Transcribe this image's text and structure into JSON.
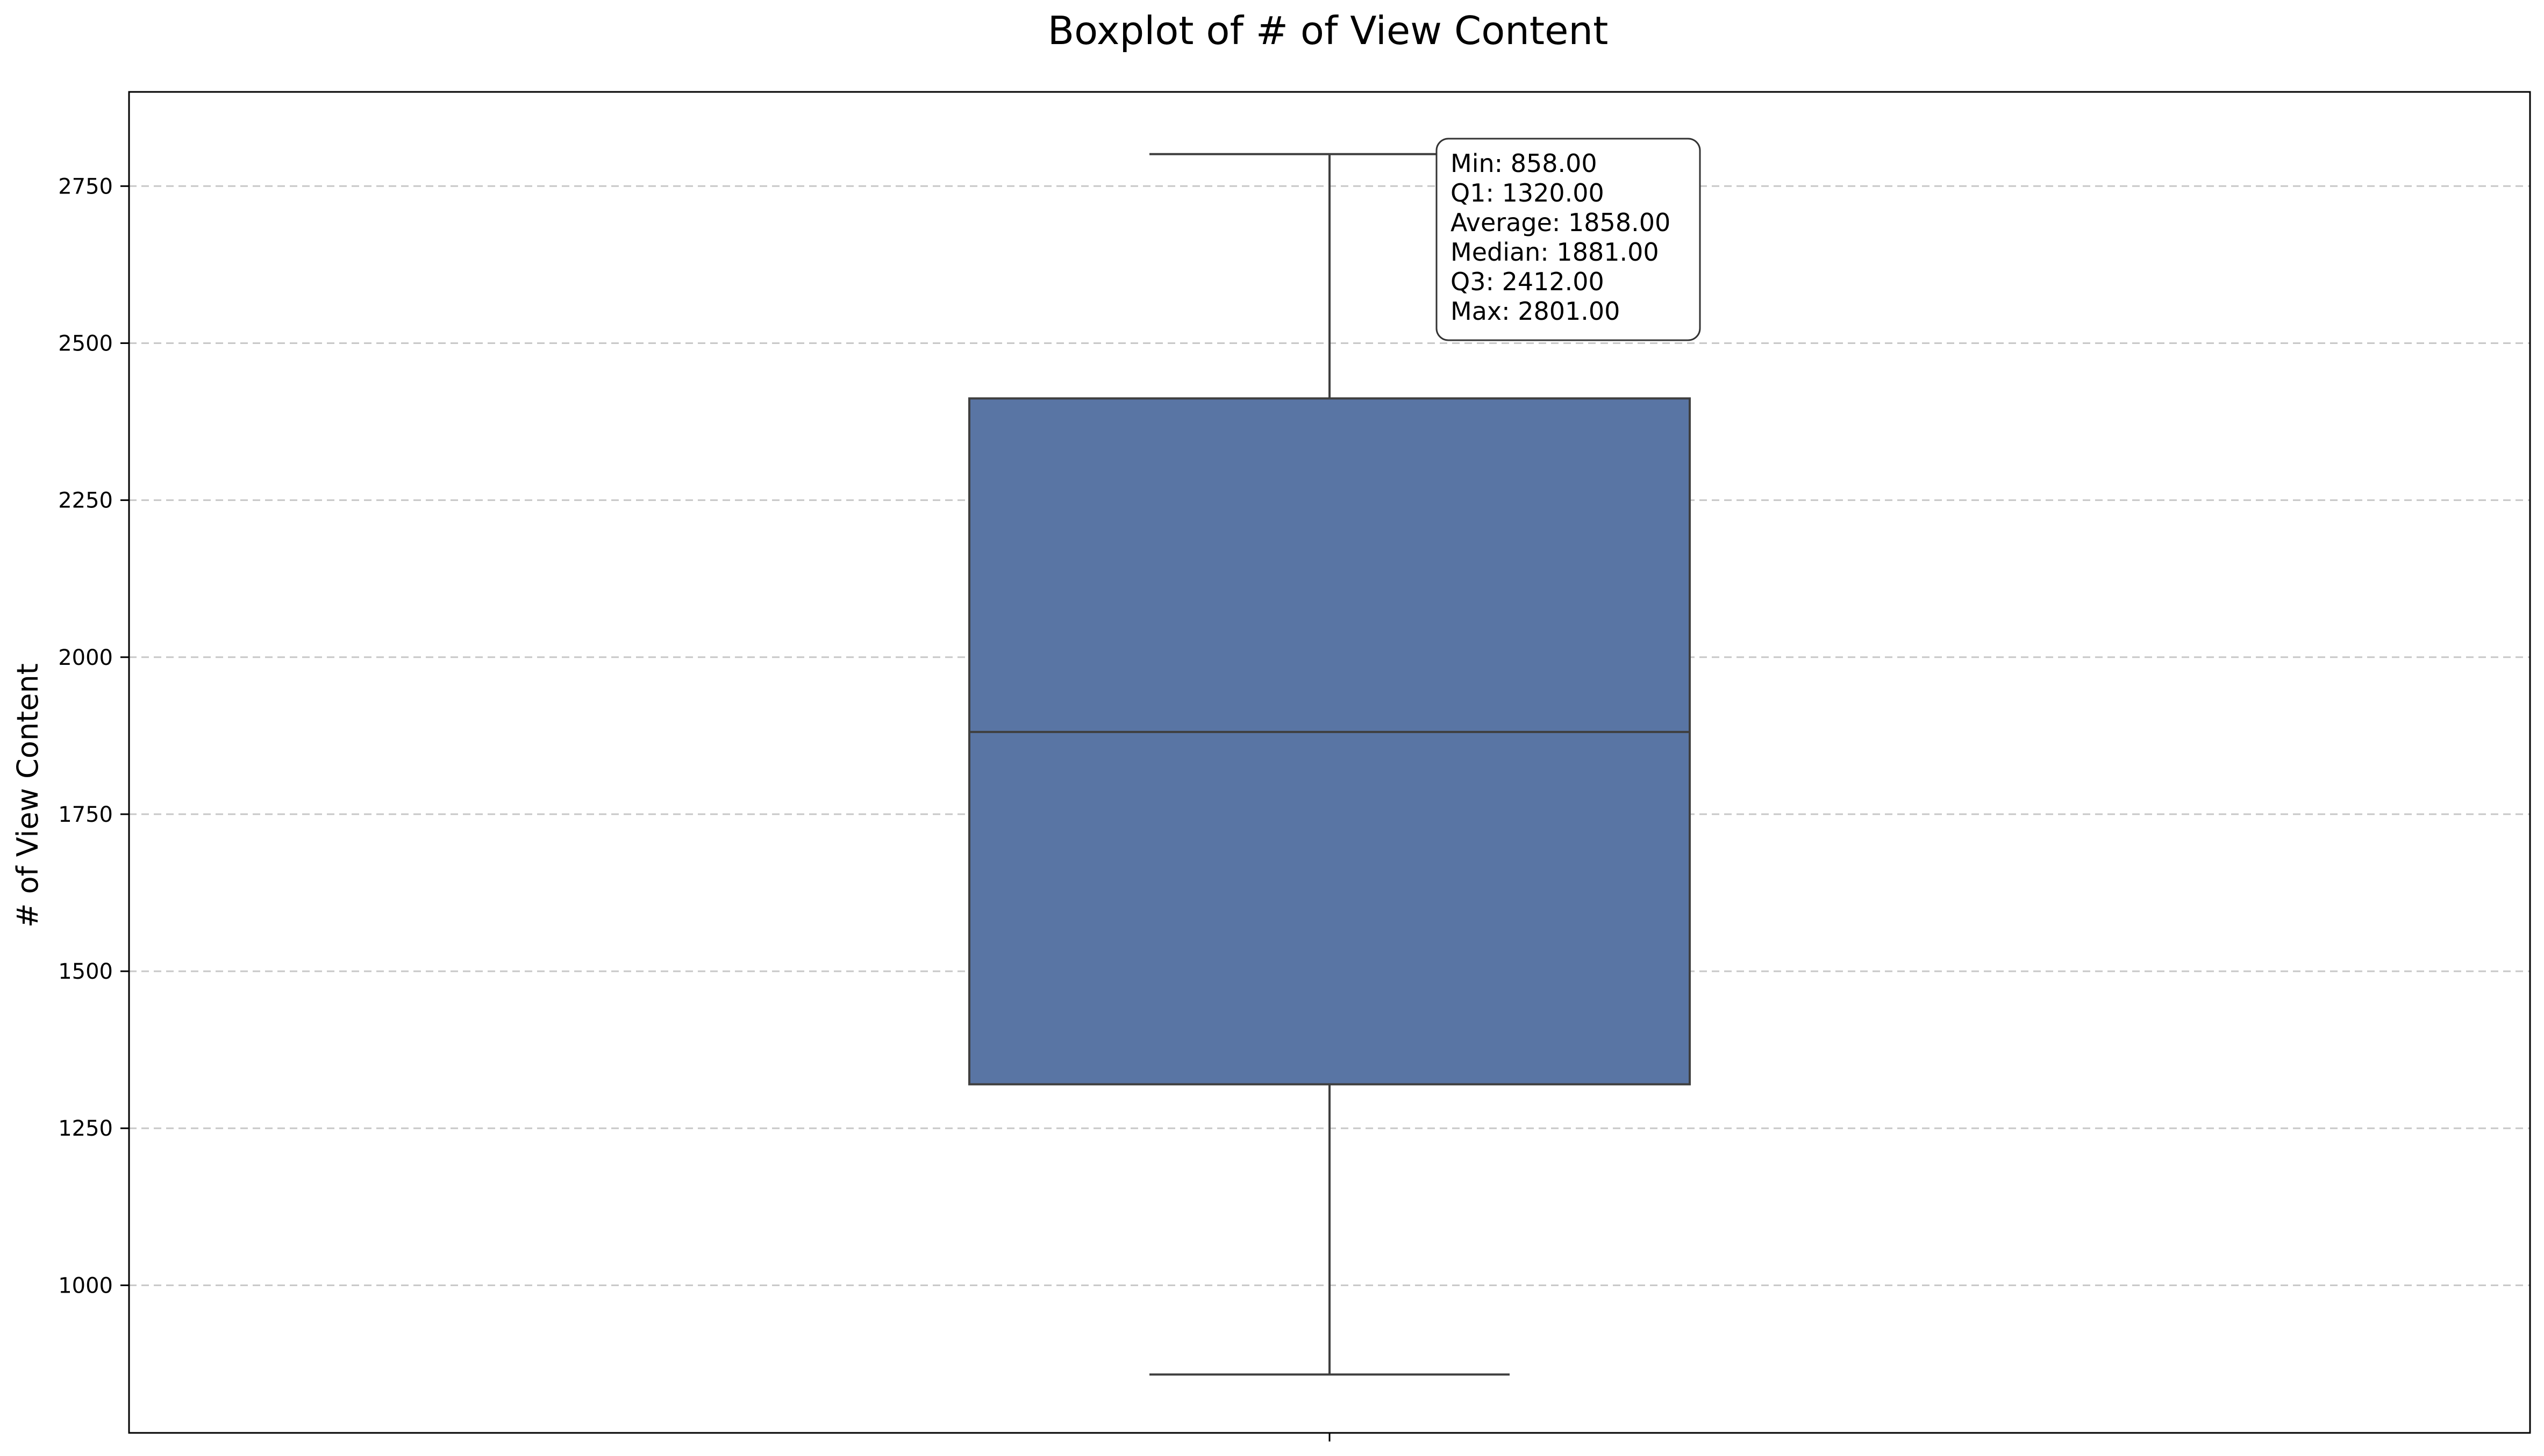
{
  "colors": {
    "box_fill": "#5975a4",
    "box_edge": "#3f3f3f",
    "grid": "#c8c8c8",
    "axis": "#000000"
  },
  "chart_data": {
    "type": "box",
    "title": "Boxplot of # of View Content",
    "xlabel": "",
    "ylabel": "# of View Content",
    "ylim": [
      765,
      2900
    ],
    "y_ticks": [
      1000,
      1250,
      1500,
      1750,
      2000,
      2250,
      2500,
      2750
    ],
    "grid": "y-dashed",
    "box": {
      "min": 858,
      "q1": 1320,
      "median": 1881,
      "q3": 2412,
      "max": 2801,
      "mean": 1858
    },
    "stats_lines": [
      "Min: 858.00",
      "Q1: 1320.00",
      "Average: 1858.00",
      "Median: 1881.00",
      "Q3: 2412.00",
      "Max: 2801.00"
    ]
  }
}
